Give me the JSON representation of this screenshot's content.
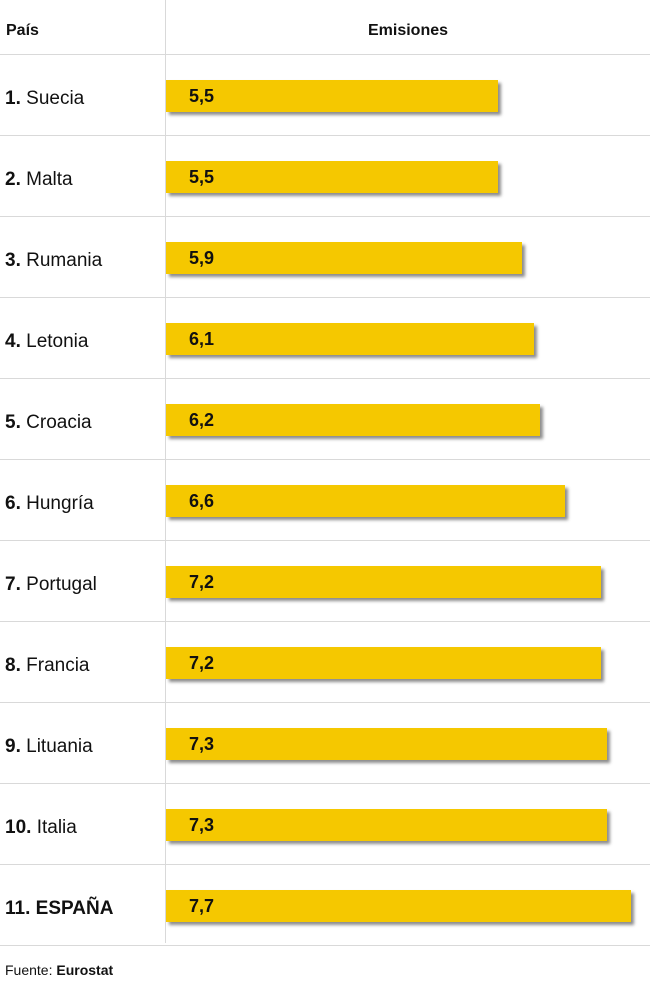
{
  "header": {
    "country_label": "País",
    "emissions_label": "Emisiones"
  },
  "chart_data": {
    "type": "bar",
    "orientation": "horizontal",
    "categories": [
      "1. Suecia",
      "2. Malta",
      "3. Rumania",
      "4. Letonia",
      "5. Croacia",
      "6. Hungría",
      "7. Portugal",
      "8. Francia",
      "9. Lituania",
      "10. Italia",
      "11. ESPAÑA"
    ],
    "values": [
      5.5,
      5.5,
      5.9,
      6.1,
      6.2,
      6.6,
      7.2,
      7.2,
      7.3,
      7.3,
      7.7
    ],
    "value_labels": [
      "5,5",
      "5,5",
      "5,9",
      "6,1",
      "6,2",
      "6,6",
      "7,2",
      "7,2",
      "7,3",
      "7,3",
      "7,7"
    ],
    "xlim": [
      0,
      7.7
    ],
    "bar_color": "#f5c800",
    "grid": false
  },
  "rows": [
    {
      "rank": "1.",
      "country": "Suecia"
    },
    {
      "rank": "2.",
      "country": "Malta"
    },
    {
      "rank": "3.",
      "country": "Rumania"
    },
    {
      "rank": "4.",
      "country": "Letonia"
    },
    {
      "rank": "5.",
      "country": "Croacia"
    },
    {
      "rank": "6.",
      "country": "Hungría"
    },
    {
      "rank": "7.",
      "country": "Portugal"
    },
    {
      "rank": "8.",
      "country": "Francia"
    },
    {
      "rank": "9.",
      "country": "Lituania"
    },
    {
      "rank": "10.",
      "country": "Italia"
    },
    {
      "rank": "11.",
      "country": "ESPAÑA",
      "highlight": true
    }
  ],
  "source": {
    "prefix": "Fuente:",
    "name": "Eurostat"
  }
}
